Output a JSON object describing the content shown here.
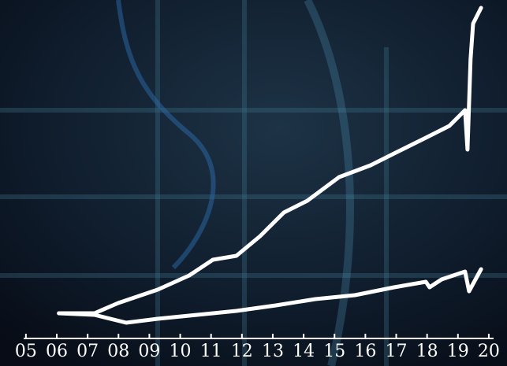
{
  "chart_data": {
    "type": "line",
    "xlim": [
      2004.16,
      2020.59
    ],
    "ylim": [
      0,
      430
    ],
    "xticks": [
      {
        "value": 2005,
        "label": "05"
      },
      {
        "value": 2006,
        "label": "06"
      },
      {
        "value": 2007,
        "label": "07"
      },
      {
        "value": 2008,
        "label": "08"
      },
      {
        "value": 2009,
        "label": "09"
      },
      {
        "value": 2010,
        "label": "10"
      },
      {
        "value": 2011,
        "label": "11"
      },
      {
        "value": 2012,
        "label": "12"
      },
      {
        "value": 2013,
        "label": "13"
      },
      {
        "value": 2014,
        "label": "14"
      },
      {
        "value": 2015,
        "label": "15"
      },
      {
        "value": 2016,
        "label": "16"
      },
      {
        "value": 2017,
        "label": "17"
      },
      {
        "value": 2018,
        "label": "18"
      },
      {
        "value": 2019,
        "label": "19"
      },
      {
        "value": 2020,
        "label": "20"
      }
    ],
    "series": [
      {
        "color": "#ffffff",
        "x": [
          2006.07,
          2007.22,
          2007.99,
          2009.27,
          2010.29,
          2011.06,
          2011.82,
          2012.59,
          2013.36,
          2014.12,
          2015.15,
          2016.17,
          2016.93,
          2017.96,
          2018.72,
          2019.23,
          2019.31,
          2019.41,
          2019.49,
          2019.75
        ],
        "values": [
          32,
          32,
          45,
          62,
          80,
          100,
          105,
          130,
          160,
          175,
          205,
          220,
          235,
          255,
          270,
          290,
          240,
          355,
          400,
          420
        ]
      },
      {
        "color": "#ffffff",
        "x": [
          2006.07,
          2007.22,
          2008.25,
          2009.27,
          2010.55,
          2011.82,
          2013.1,
          2014.38,
          2015.66,
          2016.93,
          2017.96,
          2018.08,
          2018.47,
          2019.23,
          2019.36,
          2019.75
        ],
        "values": [
          32,
          30,
          20,
          25,
          30,
          35,
          42,
          50,
          55,
          65,
          72,
          65,
          75,
          85,
          60,
          88
        ]
      }
    ]
  }
}
